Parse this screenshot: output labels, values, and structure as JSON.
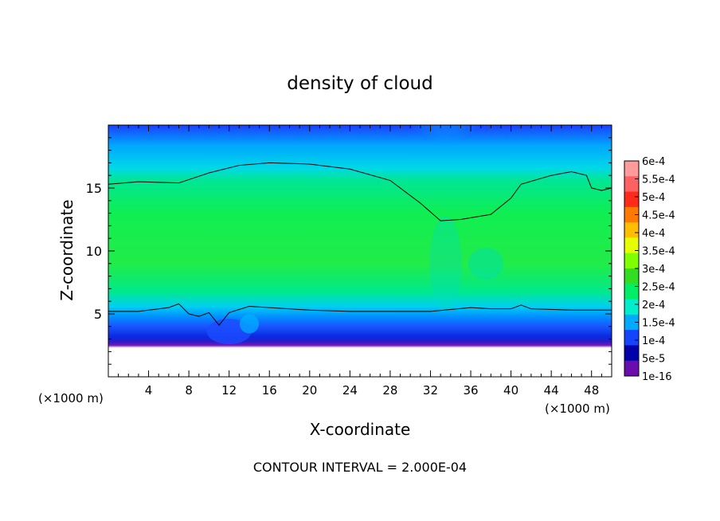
{
  "chart_data": {
    "type": "heatmap",
    "title": "density of cloud",
    "xlabel": "X-coordinate",
    "ylabel": "Z-coordinate",
    "x_unit_label": "(×1000 m)",
    "x_unit_label_right": "(×1000 m)",
    "xlim": [
      0,
      50
    ],
    "ylim": [
      0,
      20
    ],
    "x_ticks": [
      "4",
      "8",
      "12",
      "16",
      "20",
      "24",
      "28",
      "32",
      "36",
      "40",
      "44",
      "48"
    ],
    "x_tick_values": [
      4,
      8,
      12,
      16,
      20,
      24,
      28,
      32,
      36,
      40,
      44,
      48
    ],
    "y_ticks": [
      "5",
      "10",
      "15"
    ],
    "y_tick_values": [
      5,
      10,
      15
    ],
    "footer": "CONTOUR INTERVAL = 2.000E-04",
    "colorbar": {
      "labels": [
        "6e-4",
        "5.5e-4",
        "5e-4",
        "4.5e-4",
        "4e-4",
        "3.5e-4",
        "3e-4",
        "2.5e-4",
        "2e-4",
        "1.5e-4",
        "1e-4",
        "5e-5",
        "1e-16"
      ],
      "colors": [
        "#ff9b9b",
        "#ff6060",
        "#ff2a1a",
        "#ff7a00",
        "#ffbf00",
        "#e6ff00",
        "#7fff00",
        "#33dd22",
        "#00ee66",
        "#00eecc",
        "#00aaff",
        "#1544ff",
        "#0000aa",
        "#6a0dad"
      ]
    },
    "contour_level": "2e-4",
    "upper_contour": [
      [
        0,
        15.3
      ],
      [
        3,
        15.5
      ],
      [
        7,
        15.4
      ],
      [
        10,
        16.2
      ],
      [
        13,
        16.8
      ],
      [
        16,
        17.0
      ],
      [
        20,
        16.9
      ],
      [
        24,
        16.5
      ],
      [
        28,
        15.6
      ],
      [
        31,
        13.8
      ],
      [
        33,
        12.4
      ],
      [
        35,
        12.5
      ],
      [
        38,
        12.9
      ],
      [
        40,
        14.2
      ],
      [
        41,
        15.3
      ],
      [
        44,
        16.0
      ],
      [
        46,
        16.3
      ],
      [
        47.5,
        16.0
      ],
      [
        48,
        15.0
      ],
      [
        49,
        14.8
      ],
      [
        50,
        15.0
      ]
    ],
    "lower_contour": [
      [
        0,
        5.2
      ],
      [
        3,
        5.2
      ],
      [
        6,
        5.5
      ],
      [
        7,
        5.8
      ],
      [
        8,
        5.0
      ],
      [
        9,
        4.8
      ],
      [
        10,
        5.1
      ],
      [
        11,
        4.1
      ],
      [
        12,
        5.1
      ],
      [
        14,
        5.6
      ],
      [
        16,
        5.5
      ],
      [
        20,
        5.3
      ],
      [
        24,
        5.2
      ],
      [
        28,
        5.2
      ],
      [
        32,
        5.2
      ],
      [
        36,
        5.5
      ],
      [
        38,
        5.4
      ],
      [
        40,
        5.4
      ],
      [
        41,
        5.7
      ],
      [
        42,
        5.4
      ],
      [
        46,
        5.3
      ],
      [
        50,
        5.3
      ]
    ],
    "cloud_base": [
      [
        0,
        2.0
      ],
      [
        10,
        2.1
      ],
      [
        20,
        2.0
      ],
      [
        30,
        2.1
      ],
      [
        40,
        2.0
      ],
      [
        50,
        2.1
      ]
    ]
  }
}
